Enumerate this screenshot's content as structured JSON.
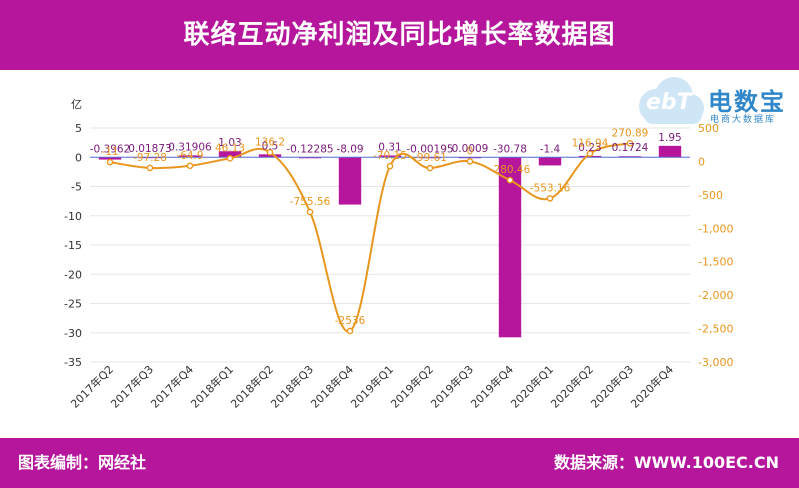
{
  "header": {
    "title": "联络互动净利润及同比增长率数据图"
  },
  "footer": {
    "left": "图表编制：网经社",
    "right": "数据来源：WWW.100EC.CN"
  },
  "logo": {
    "mark": "ebT",
    "main": "电数宝",
    "sub": "电商大数据库"
  },
  "colors": {
    "bar": "#b5169c",
    "line": "#e8961e",
    "axis_left": "#333333",
    "axis_right": "#e8961e",
    "label_bar": "#7a1a7a",
    "label_line": "#e8961e"
  },
  "chart_data": {
    "type": "bar",
    "categories": [
      "2017年Q2",
      "2017年Q3",
      "2017年Q4",
      "2018年Q1",
      "2018年Q2",
      "2018年Q3",
      "2018年Q4",
      "2019年Q1",
      "2019年Q2",
      "2019年Q3",
      "2019年Q4",
      "2020年Q1",
      "2020年Q2",
      "2020年Q3",
      "2020年Q4"
    ],
    "series": [
      {
        "type": "bar",
        "axis": "left",
        "values": [
          -0.3962,
          0.01873,
          0.31906,
          1.03,
          0.5,
          -0.12285,
          -8.09,
          0.31,
          -0.00195,
          0.0009,
          -30.78,
          -1.4,
          0.23,
          0.1724,
          1.95
        ],
        "labels": [
          "-0.3962",
          "0.01873",
          "0.31906",
          "1.03",
          "0.5",
          "-0.12285",
          "-8.09",
          "0.31",
          "-0.00195",
          "0.0009",
          "-30.78",
          "-1.4",
          "0.23",
          "0.1724",
          "1.95"
        ]
      },
      {
        "type": "line",
        "axis": "right",
        "values": [
          -11,
          -97.28,
          -64.9,
          46.13,
          136.2,
          -755.56,
          -2536,
          -70.15,
          -99.61,
          0,
          -280.46,
          -553.16,
          116.94,
          270.89,
          null
        ],
        "labels": [
          "-11",
          "-97.28",
          "-64.9",
          "46.13",
          "136.2",
          "-755.56",
          "-2536",
          "-70.15",
          "-99.61",
          "0",
          "-280.46",
          "-553.16",
          "116.94",
          "270.89",
          ""
        ]
      }
    ],
    "left_axis": {
      "unit": "亿",
      "min": -35,
      "max": 5,
      "ticks": [
        "5",
        "0",
        "-5",
        "-10",
        "-15",
        "-20",
        "-25",
        "-30",
        "-35"
      ]
    },
    "right_axis": {
      "unit": "%",
      "min": -3000,
      "max": 500,
      "ticks": [
        "500",
        "0",
        "-500",
        "-1,000",
        "-1,500",
        "-2,000",
        "-2,500",
        "-3,000"
      ]
    },
    "grid": true,
    "legend": "none"
  }
}
